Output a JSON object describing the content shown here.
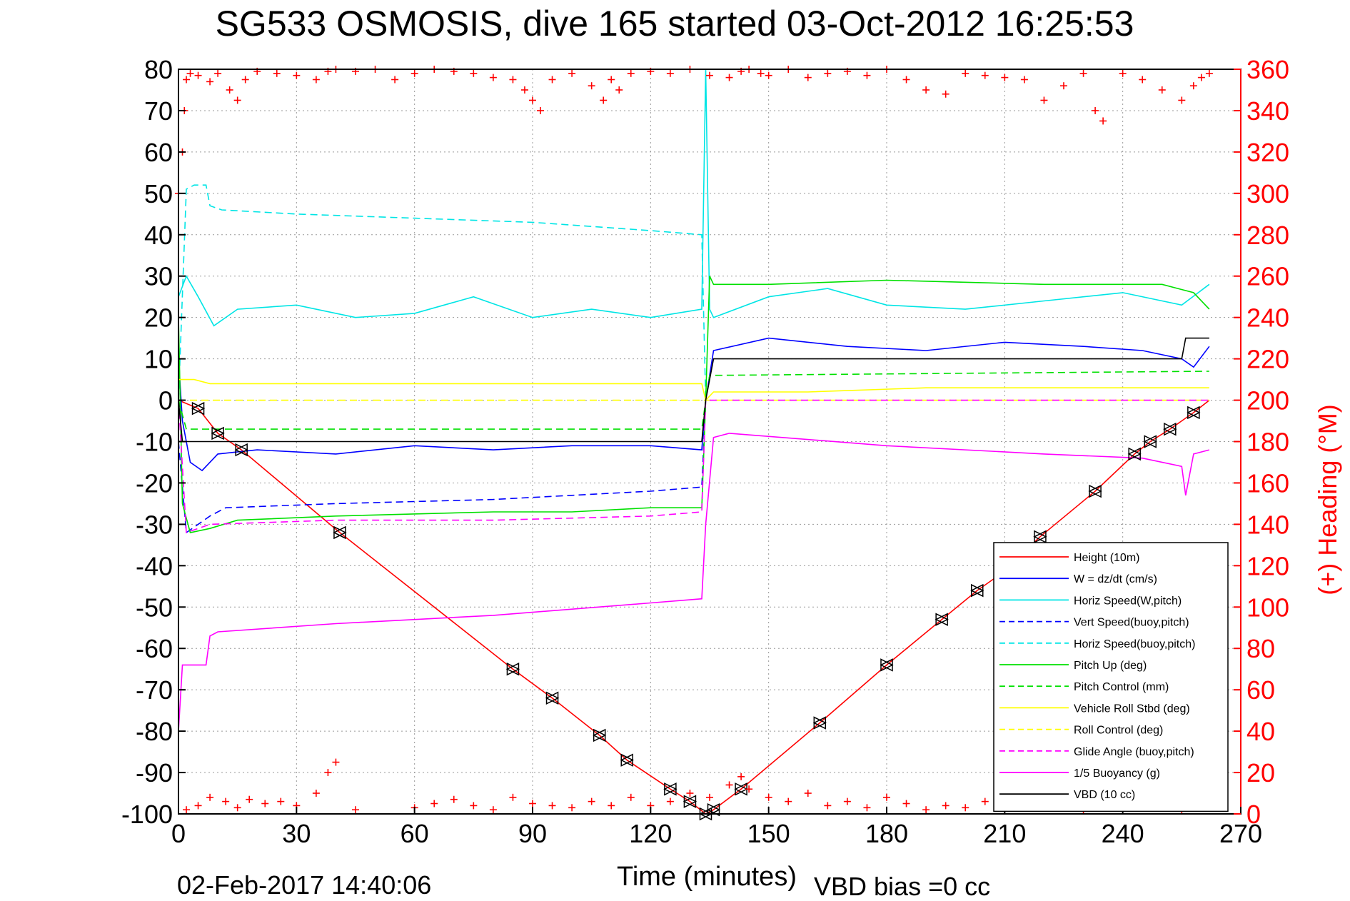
{
  "chart_data": {
    "type": "line",
    "title": "SG533 OSMOSIS, dive 165 started 03-Oct-2012 16:25:53",
    "xlabel": "Time (minutes)",
    "ylabel_right": "(+) Heading (°M)",
    "footer_left": "02-Feb-2017 14:40:06",
    "footer_right": "VBD bias =0 cc",
    "xlim": [
      0,
      270
    ],
    "ylim": [
      -100,
      80
    ],
    "ylim_right": [
      0,
      360
    ],
    "xticks": [
      "0",
      "30",
      "60",
      "90",
      "120",
      "150",
      "180",
      "210",
      "240",
      "270"
    ],
    "yticks": [
      "80",
      "70",
      "60",
      "50",
      "40",
      "30",
      "20",
      "10",
      "0",
      "-10",
      "-20",
      "-30",
      "-40",
      "-50",
      "-60",
      "-70",
      "-80",
      "-90",
      "-100"
    ],
    "yticks_right": [
      "360",
      "340",
      "320",
      "300",
      "280",
      "260",
      "240",
      "220",
      "200",
      "180",
      "160",
      "140",
      "120",
      "100",
      "80",
      "60",
      "40",
      "20",
      "0"
    ],
    "grid": true,
    "legend_position": "lower-right",
    "series": [
      {
        "name": "Height (10m)",
        "color": "#ff0000",
        "dash": "solid",
        "x": [
          0,
          5,
          10,
          16,
          41,
          85,
          95,
          107,
          114,
          125,
          130,
          134,
          136,
          143,
          163,
          180,
          194,
          203,
          209,
          219,
          233,
          243,
          247,
          252,
          258,
          262
        ],
        "y": [
          0,
          -2,
          -8,
          -12,
          -32,
          -65,
          -72,
          -81,
          -87,
          -94,
          -97,
          -100,
          -99,
          -94,
          -78,
          -64,
          -53,
          -46,
          -42,
          -33,
          -22,
          -13,
          -10,
          -7,
          -3,
          0
        ]
      },
      {
        "name": "W = dz/dt (cm/s)",
        "color": "#0000ff",
        "dash": "solid",
        "x": [
          0,
          1,
          3,
          6,
          10,
          20,
          40,
          60,
          80,
          100,
          120,
          133,
          134,
          136,
          150,
          170,
          190,
          210,
          230,
          245,
          255,
          258,
          262
        ],
        "y": [
          10,
          -5,
          -15,
          -17,
          -13,
          -12,
          -13,
          -11,
          -12,
          -11,
          -11,
          -12,
          0,
          12,
          15,
          13,
          12,
          14,
          13,
          12,
          10,
          8,
          13
        ]
      },
      {
        "name": "Horiz Speed(W,pitch)",
        "color": "#00e5e5",
        "dash": "solid",
        "x": [
          0,
          2,
          5,
          9,
          15,
          30,
          45,
          60,
          75,
          90,
          105,
          120,
          133,
          134,
          135,
          136,
          150,
          165,
          180,
          200,
          220,
          240,
          255,
          262
        ],
        "y": [
          25,
          30,
          25,
          18,
          22,
          23,
          20,
          21,
          25,
          20,
          22,
          20,
          22,
          80,
          22,
          20,
          25,
          27,
          23,
          22,
          24,
          26,
          23,
          28
        ]
      },
      {
        "name": "Vert Speed(buoy,pitch)",
        "color": "#0000ff",
        "dash": "dashed",
        "x": [
          0,
          2,
          8,
          12,
          40,
          80,
          100,
          120,
          133,
          134
        ],
        "y": [
          -10,
          -32,
          -28,
          -26,
          -25,
          -24,
          -23,
          -22,
          -21,
          0
        ]
      },
      {
        "name": "Horiz Speed(buoy,pitch)",
        "color": "#00e5e5",
        "dash": "dashed",
        "x": [
          0,
          2,
          4,
          7,
          8,
          11,
          30,
          60,
          90,
          120,
          133,
          134
        ],
        "y": [
          0,
          51,
          52,
          52,
          47,
          46,
          45,
          44,
          43,
          41,
          40,
          0
        ]
      },
      {
        "name": "Pitch Up (deg)",
        "color": "#00e000",
        "dash": "solid",
        "x": [
          0,
          1,
          3,
          8,
          15,
          40,
          80,
          100,
          120,
          133,
          134,
          135,
          136,
          150,
          180,
          220,
          250,
          258,
          262
        ],
        "y": [
          20,
          -25,
          -32,
          -31,
          -29,
          -28,
          -27,
          -27,
          -26,
          -26,
          0,
          30,
          28,
          28,
          29,
          28,
          28,
          26,
          22
        ]
      },
      {
        "name": "Pitch Control (mm)",
        "color": "#00e000",
        "dash": "dashed",
        "x": [
          0,
          2,
          8,
          133,
          134,
          135,
          262
        ],
        "y": [
          0,
          -7,
          -7,
          -7,
          0,
          6,
          7
        ]
      },
      {
        "name": "Vehicle Roll Stbd (deg)",
        "color": "#ffff00",
        "dash": "solid",
        "x": [
          0,
          4,
          8,
          20,
          40,
          60,
          80,
          100,
          120,
          133,
          134,
          136,
          160,
          190,
          220,
          250,
          262
        ],
        "y": [
          5,
          5,
          4,
          4,
          4,
          4,
          4,
          4,
          4,
          4,
          0,
          2,
          2,
          3,
          3,
          3,
          3
        ]
      },
      {
        "name": "Roll Control (deg)",
        "color": "#ffff00",
        "dash": "dashed",
        "x": [
          0,
          5,
          133,
          134,
          262
        ],
        "y": [
          0,
          0,
          0,
          0,
          0
        ]
      },
      {
        "name": "Glide Angle (buoy,pitch)",
        "color": "#ff00ff",
        "dash": "dashed",
        "x": [
          0,
          2,
          8,
          40,
          80,
          120,
          133,
          134,
          262
        ],
        "y": [
          0,
          -32,
          -30,
          -29,
          -29,
          -28,
          -27,
          0,
          0
        ]
      },
      {
        "name": "1/5 Buoyancy (g)",
        "color": "#ff00ff",
        "dash": "solid",
        "x": [
          0,
          1,
          2,
          7,
          8,
          10,
          40,
          80,
          120,
          133,
          134,
          136,
          140,
          180,
          220,
          245,
          255,
          256,
          258,
          262
        ],
        "y": [
          -80,
          -64,
          -64,
          -64,
          -57,
          -56,
          -54,
          -52,
          -49,
          -48,
          -30,
          -9,
          -8,
          -11,
          -13,
          -14,
          -16,
          -23,
          -13,
          -12
        ]
      },
      {
        "name": "VBD (10 cc)",
        "color": "#000000",
        "dash": "solid",
        "x": [
          0,
          1,
          2,
          133,
          134,
          136,
          255,
          256,
          262
        ],
        "y": [
          0,
          -10,
          -10,
          -10,
          0,
          10,
          10,
          15,
          15
        ]
      }
    ],
    "heading_series": {
      "name": "(+) Heading (°M)",
      "color": "#ff0000",
      "marker": "+",
      "axis": "right",
      "x": [
        0,
        1,
        1.5,
        2,
        3,
        5,
        8,
        10,
        13,
        15,
        17,
        20,
        25,
        30,
        35,
        38,
        40,
        45,
        50,
        55,
        60,
        65,
        70,
        75,
        80,
        85,
        88,
        90,
        92,
        95,
        100,
        105,
        108,
        110,
        112,
        115,
        120,
        125,
        130,
        135,
        140,
        143,
        145,
        148,
        150,
        155,
        160,
        165,
        170,
        175,
        180,
        185,
        190,
        195,
        200,
        205,
        210,
        215,
        220,
        225,
        230,
        233,
        235,
        240,
        245,
        250,
        255,
        258,
        260,
        262
      ],
      "y": [
        300,
        320,
        340,
        355,
        358,
        357,
        354,
        358,
        350,
        345,
        355,
        359,
        358,
        357,
        355,
        359,
        360,
        359,
        360,
        355,
        358,
        360,
        359,
        358,
        356,
        355,
        350,
        345,
        340,
        355,
        358,
        352,
        345,
        355,
        350,
        358,
        359,
        358,
        360,
        357,
        356,
        359,
        360,
        358,
        357,
        360,
        356,
        358,
        359,
        357,
        360,
        355,
        350,
        348,
        358,
        357,
        356,
        355,
        345,
        352,
        358,
        340,
        335,
        358,
        355,
        350,
        345,
        352,
        356,
        358
      ]
    },
    "heading_low_x": [
      2,
      5,
      8,
      12,
      15,
      18,
      22,
      26,
      30,
      35,
      38,
      40,
      45,
      60,
      65,
      70,
      75,
      80,
      85,
      90,
      95,
      100,
      105,
      110,
      115,
      120,
      125,
      130,
      135,
      140,
      143,
      145,
      150,
      155,
      160,
      165,
      170,
      175,
      180,
      185,
      190,
      195,
      200,
      205,
      210,
      215,
      220,
      225,
      230,
      235,
      240,
      245,
      250,
      255,
      260
    ],
    "heading_low_y": [
      2,
      4,
      8,
      6,
      3,
      7,
      5,
      6,
      4,
      10,
      20,
      25,
      2,
      3,
      5,
      7,
      4,
      2,
      8,
      5,
      4,
      3,
      6,
      4,
      8,
      4,
      6,
      10,
      8,
      14,
      18,
      12,
      8,
      6,
      10,
      4,
      6,
      3,
      8,
      5,
      2,
      4,
      3,
      6,
      4,
      5,
      3,
      6,
      2,
      4,
      5,
      3,
      4,
      2,
      3
    ]
  },
  "legend_items": [
    "Height (10m)",
    "W = dz/dt (cm/s)",
    "Horiz Speed(W,pitch)",
    "Vert Speed(buoy,pitch)",
    "Horiz Speed(buoy,pitch)",
    "Pitch Up (deg)",
    "Pitch Control (mm)",
    "Vehicle Roll Stbd (deg)",
    "Roll Control (deg)",
    "Glide Angle (buoy,pitch)",
    "1/5 Buoyancy (g)",
    "VBD (10 cc)"
  ]
}
